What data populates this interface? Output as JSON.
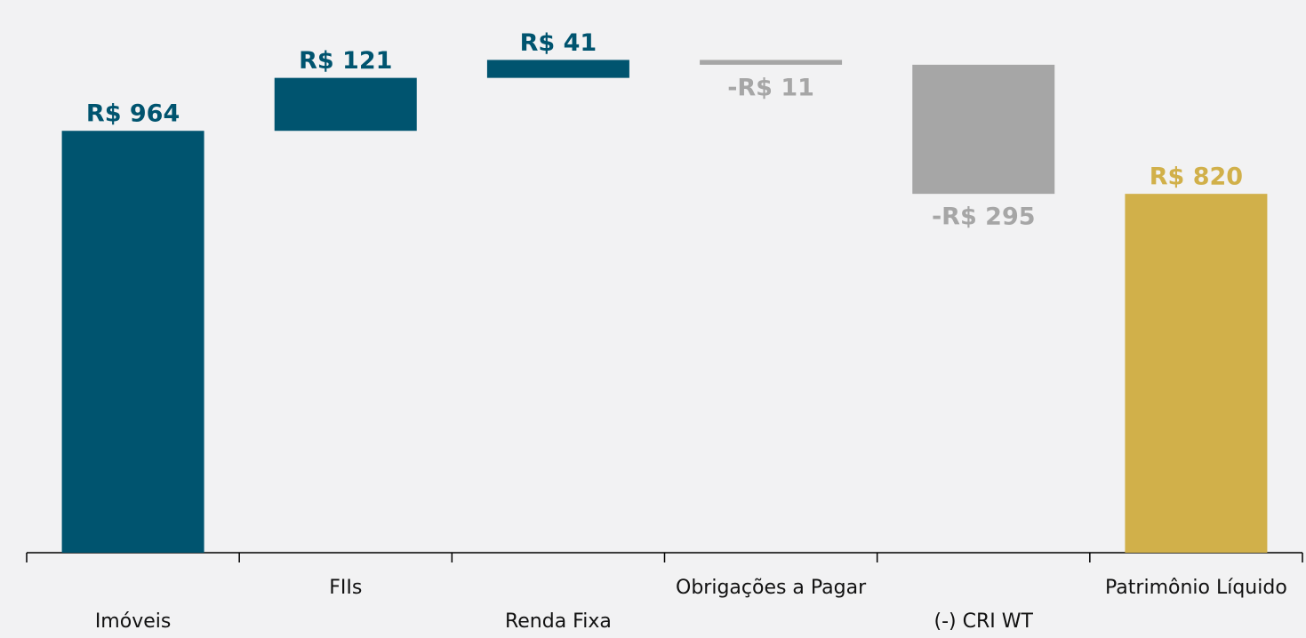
{
  "chart_data": {
    "type": "waterfall",
    "categories": [
      "Imóveis",
      "FIIs",
      "Renda Fixa",
      "Obrigações a Pagar",
      "(-) CRI WT",
      "Patrimônio Líquido"
    ],
    "values": [
      964,
      121,
      41,
      -11,
      -295,
      820
    ],
    "value_labels": [
      "R$ 964",
      "R$ 121",
      "R$ 41",
      "-R$ 11",
      "-R$ 295",
      "R$ 820"
    ],
    "is_total": [
      false,
      false,
      false,
      false,
      false,
      true
    ],
    "colors": [
      "#00546f",
      "#00546f",
      "#00546f",
      "#a6a6a6",
      "#a6a6a6",
      "#d1b04a"
    ],
    "ylim": [
      0,
      1200
    ]
  }
}
